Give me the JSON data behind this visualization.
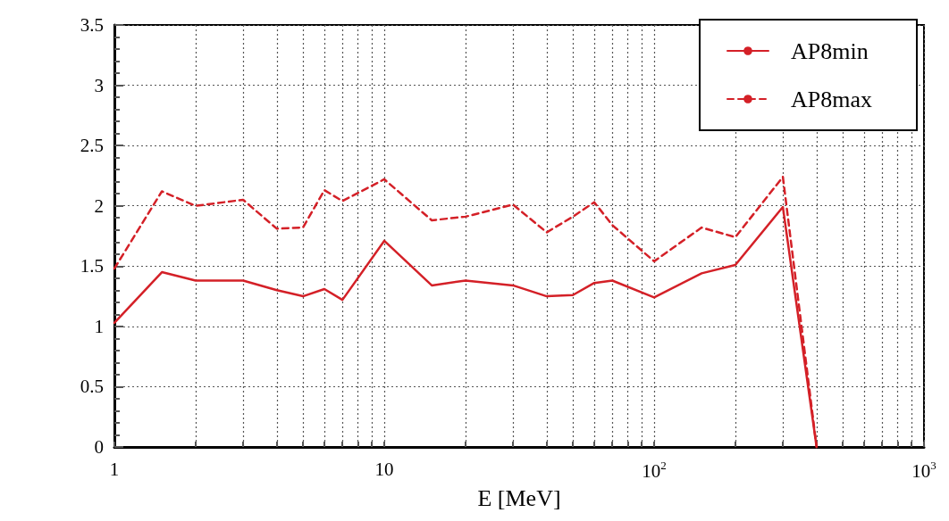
{
  "chart_data": {
    "type": "line",
    "xlabel": "E [MeV]",
    "log": "x",
    "x": [
      1,
      1.5,
      2,
      3,
      4,
      5,
      6,
      7,
      10,
      15,
      20,
      30,
      40,
      50,
      60,
      70,
      100,
      150,
      200,
      300,
      400
    ],
    "series": [
      {
        "name": "AP8min",
        "color": "#d42027",
        "line_style": "solid",
        "values": [
          1.03,
          1.45,
          1.38,
          1.38,
          1.3,
          1.25,
          1.31,
          1.22,
          1.71,
          1.34,
          1.38,
          1.34,
          1.25,
          1.26,
          1.36,
          1.38,
          1.24,
          1.44,
          1.51,
          1.99,
          0
        ]
      },
      {
        "name": "AP8max",
        "color": "#d42027",
        "line_style": "dashed",
        "values": [
          1.48,
          2.12,
          2.0,
          2.05,
          1.81,
          1.82,
          2.13,
          2.04,
          2.22,
          1.88,
          1.91,
          2.01,
          1.78,
          1.91,
          2.03,
          1.84,
          1.54,
          1.82,
          1.74,
          2.24,
          0
        ]
      }
    ],
    "xlim": [
      1,
      1000
    ],
    "xticks": [
      1,
      {
        "value": 2,
        "label": null
      },
      {
        "value": 3,
        "label": null
      },
      {
        "value": 4,
        "label": null
      },
      {
        "value": 5,
        "label": null
      },
      {
        "value": 6,
        "label": null
      },
      {
        "value": 7,
        "label": null
      },
      {
        "value": 8,
        "label": null
      },
      {
        "value": 9,
        "label": null
      },
      10,
      {
        "value": 20,
        "label": null
      },
      {
        "value": 30,
        "label": null
      },
      {
        "value": 40,
        "label": null
      },
      {
        "value": 50,
        "label": null
      },
      {
        "value": 60,
        "label": null
      },
      {
        "value": 70,
        "label": null
      },
      {
        "value": 80,
        "label": null
      },
      {
        "value": 90,
        "label": null
      },
      {
        "value": 100,
        "label": "10$^{2}$"
      },
      {
        "value": 200,
        "label": null
      },
      {
        "value": 300,
        "label": null
      },
      {
        "value": 400,
        "label": null
      },
      {
        "value": 500,
        "label": null
      },
      {
        "value": 600,
        "label": null
      },
      {
        "value": 700,
        "label": null
      },
      {
        "value": 800,
        "label": null
      },
      {
        "value": 900,
        "label": null
      },
      {
        "value": 1000,
        "label": "10$^{3}$"
      }
    ],
    "ylim": [
      0,
      3.5
    ],
    "yticks": [
      0,
      0.5,
      1,
      1.5,
      2,
      2.5,
      3,
      3.5
    ],
    "grid": true,
    "legend": "top right",
    "marker": "none"
  }
}
